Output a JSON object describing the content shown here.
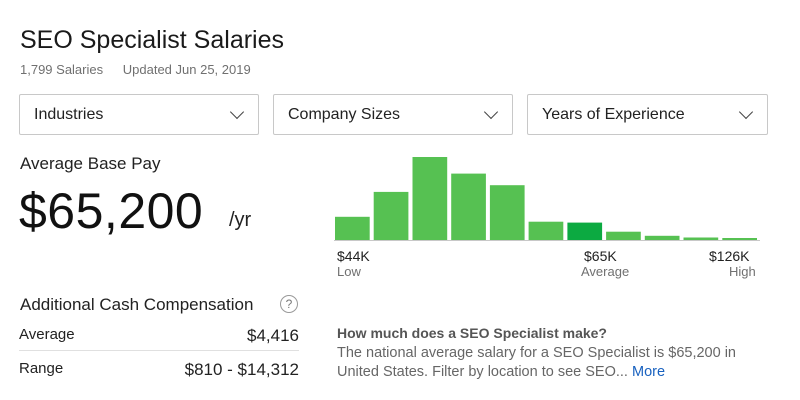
{
  "header": {
    "title": "SEO Specialist Salaries",
    "salary_count": "1,799 Salaries",
    "updated": "Updated Jun 25, 2019"
  },
  "filters": [
    {
      "label": "Industries"
    },
    {
      "label": "Company Sizes"
    },
    {
      "label": "Years of Experience"
    }
  ],
  "average_base_pay": {
    "label": "Average Base Pay",
    "value": "$65,200",
    "unit": "/yr"
  },
  "distribution": {
    "low_value": "$44K",
    "low_label": "Low",
    "avg_value": "$65K",
    "avg_label": "Average",
    "high_value": "$126K",
    "high_label": "High",
    "bar_color": "#56c152",
    "highlight_color": "#0caa41",
    "baseline_color": "#c8c8c8"
  },
  "chart_data": {
    "type": "bar",
    "categories": [
      "1",
      "2",
      "3",
      "4",
      "5",
      "6",
      "7",
      "8",
      "9",
      "10",
      "11"
    ],
    "values": [
      0.28,
      0.58,
      1.0,
      0.8,
      0.66,
      0.22,
      0.21,
      0.1,
      0.05,
      0.03,
      0.0
    ],
    "highlight_index": 6,
    "x_tick_labels": [
      "$44K",
      "$65K",
      "$126K"
    ],
    "x_tick_sublabels": [
      "Low",
      "Average",
      "High"
    ],
    "ylim": [
      0,
      1
    ],
    "grid": false,
    "legend": "none"
  },
  "additional_cash": {
    "title": "Additional Cash Compensation",
    "help_icon": "?",
    "rows": [
      {
        "label": "Average",
        "value": "$4,416"
      },
      {
        "label": "Range",
        "value": "$810 - $14,312"
      }
    ]
  },
  "faq": {
    "question": "How much does a SEO Specialist make?",
    "answer": "The national average salary for a SEO Specialist is $65,200 in United States. Filter by location to see SEO...",
    "more_label": "More"
  }
}
